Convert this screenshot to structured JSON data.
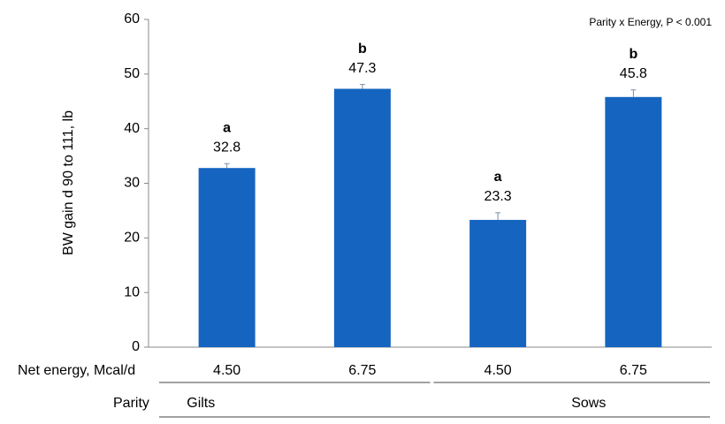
{
  "chart_data": {
    "type": "bar",
    "y_label": "BW gain d 90 to 111, lb",
    "annotation": "Parity x Energy, P < 0.001",
    "x_label": "Net energy, Mcal/d",
    "group_label": "Parity",
    "groups": [
      "Gilts",
      "Sows"
    ],
    "categories": [
      "4.50",
      "6.75",
      "4.50",
      "6.75"
    ],
    "values": [
      32.8,
      47.3,
      23.3,
      45.8
    ],
    "errors": [
      0.8,
      0.8,
      1.3,
      1.3
    ],
    "letters": [
      "a",
      "b",
      "a",
      "b"
    ],
    "color": "#1565c0",
    "ylim": [
      0,
      60
    ],
    "yticks": [
      0,
      10,
      20,
      30,
      40,
      50,
      60
    ],
    "grid": false
  }
}
